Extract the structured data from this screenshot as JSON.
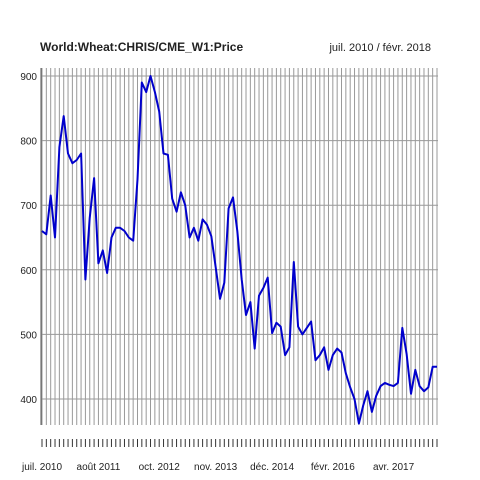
{
  "chart_data": {
    "type": "line",
    "title": "World:Wheat:CHRIS/CME_W1:Price",
    "subtitle": "juil. 2010 / févr. 2018",
    "xlabel": "",
    "ylabel": "",
    "x_range": [
      "2010-07",
      "2018-02"
    ],
    "ylim": [
      355,
      910
    ],
    "y_ticks": [
      400,
      500,
      600,
      700,
      800,
      900
    ],
    "x_tick_labels": [
      "juil. 2010",
      "août 2011",
      "oct. 2012",
      "nov. 2013",
      "déc. 2014",
      "févr. 2016",
      "avr. 2017"
    ],
    "x_tick_dates": [
      "2010-07",
      "2011-08",
      "2012-10",
      "2013-11",
      "2014-12",
      "2016-02",
      "2017-04"
    ],
    "grid": true,
    "line_color": "#0000cc",
    "series": [
      {
        "name": "",
        "x": [
          "2010-07",
          "2010-08",
          "2010-09",
          "2010-10",
          "2010-11",
          "2010-12",
          "2011-01",
          "2011-02",
          "2011-03",
          "2011-04",
          "2011-05",
          "2011-06",
          "2011-07",
          "2011-08",
          "2011-09",
          "2011-10",
          "2011-11",
          "2011-12",
          "2012-01",
          "2012-02",
          "2012-03",
          "2012-04",
          "2012-05",
          "2012-06",
          "2012-07",
          "2012-08",
          "2012-09",
          "2012-10",
          "2012-11",
          "2012-12",
          "2013-01",
          "2013-02",
          "2013-03",
          "2013-04",
          "2013-05",
          "2013-06",
          "2013-07",
          "2013-08",
          "2013-09",
          "2013-10",
          "2013-11",
          "2013-12",
          "2014-01",
          "2014-02",
          "2014-03",
          "2014-04",
          "2014-05",
          "2014-06",
          "2014-07",
          "2014-08",
          "2014-09",
          "2014-10",
          "2014-11",
          "2014-12",
          "2015-01",
          "2015-02",
          "2015-03",
          "2015-04",
          "2015-05",
          "2015-06",
          "2015-07",
          "2015-08",
          "2015-09",
          "2015-10",
          "2015-11",
          "2015-12",
          "2016-01",
          "2016-02",
          "2016-03",
          "2016-04",
          "2016-05",
          "2016-06",
          "2016-07",
          "2016-08",
          "2016-09",
          "2016-10",
          "2016-11",
          "2016-12",
          "2017-01",
          "2017-02",
          "2017-03",
          "2017-04",
          "2017-05",
          "2017-06",
          "2017-07",
          "2017-08",
          "2017-09",
          "2017-10",
          "2017-11",
          "2017-12",
          "2018-01",
          "2018-02"
        ],
        "values": [
          660,
          655,
          715,
          650,
          790,
          838,
          780,
          765,
          770,
          780,
          585,
          680,
          742,
          610,
          630,
          595,
          650,
          665,
          665,
          660,
          650,
          645,
          740,
          890,
          875,
          900,
          875,
          845,
          780,
          778,
          710,
          690,
          720,
          700,
          650,
          665,
          645,
          678,
          670,
          652,
          605,
          555,
          580,
          695,
          712,
          660,
          585,
          530,
          550,
          478,
          560,
          572,
          588,
          502,
          518,
          512,
          468,
          480,
          612,
          512,
          500,
          510,
          520,
          460,
          468,
          480,
          445,
          468,
          478,
          472,
          440,
          418,
          400,
          362,
          390,
          412,
          380,
          405,
          420,
          425,
          422,
          420,
          425,
          510,
          470,
          408,
          445,
          420,
          412,
          418,
          450,
          450
        ]
      }
    ]
  }
}
